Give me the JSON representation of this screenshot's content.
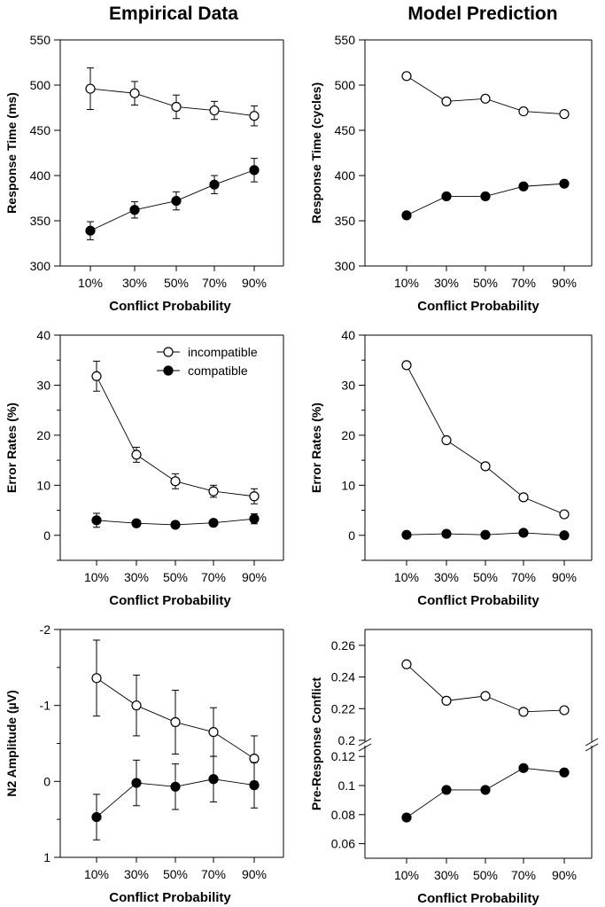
{
  "figure": {
    "col_titles": [
      "Empirical Data",
      "Model Prediction"
    ],
    "legend": {
      "incompatible": "incompatible",
      "compatible": "compatible"
    }
  },
  "chart_data": [
    {
      "id": "p1",
      "type": "line",
      "title": "Empirical Data",
      "xlabel": "Conflict Probability",
      "ylabel": "Response Time (ms)",
      "categories": [
        "10%",
        "30%",
        "50%",
        "70%",
        "90%"
      ],
      "ylim": [
        300,
        550
      ],
      "yticks": [
        300,
        350,
        400,
        450,
        500,
        550
      ],
      "ytick_labels": [
        "300",
        "350",
        "400",
        "450",
        "500",
        "550"
      ],
      "series": [
        {
          "name": "incompatible",
          "marker": "open",
          "values": [
            496,
            491,
            476,
            472,
            466
          ],
          "errors": [
            23,
            13,
            13,
            10,
            11
          ]
        },
        {
          "name": "compatible",
          "marker": "filled",
          "values": [
            339,
            362,
            372,
            390,
            406
          ],
          "errors": [
            10,
            9,
            10,
            10,
            13
          ]
        }
      ]
    },
    {
      "id": "p2",
      "type": "line",
      "title": "Model Prediction",
      "xlabel": "Conflict Probability",
      "ylabel": "Response Time (cycles)",
      "categories": [
        "10%",
        "30%",
        "50%",
        "70%",
        "90%"
      ],
      "ylim": [
        300,
        550
      ],
      "yticks": [
        300,
        350,
        400,
        450,
        500,
        550
      ],
      "ytick_labels": [
        "300",
        "350",
        "400",
        "450",
        "500",
        "550"
      ],
      "series": [
        {
          "name": "incompatible",
          "marker": "open",
          "values": [
            510,
            482,
            485,
            471,
            468
          ]
        },
        {
          "name": "compatible",
          "marker": "filled",
          "values": [
            356,
            377,
            377,
            388,
            391
          ]
        }
      ]
    },
    {
      "id": "p3",
      "type": "line",
      "xlabel": "Conflict Probability",
      "ylabel": "Error Rates (%)",
      "categories": [
        "10%",
        "30%",
        "50%",
        "70%",
        "90%"
      ],
      "ylim": [
        -5,
        40
      ],
      "yticks": [
        0,
        10,
        20,
        30,
        40
      ],
      "ytick_labels": [
        "0",
        "10",
        "20",
        "30",
        "40"
      ],
      "minor_yticks": [
        -5,
        5,
        15,
        25,
        35
      ],
      "legend_position": "top-right",
      "series": [
        {
          "name": "incompatible",
          "marker": "open",
          "values": [
            31.8,
            16.1,
            10.8,
            8.8,
            7.8
          ],
          "errors": [
            3,
            1.5,
            1.5,
            1.2,
            1.5
          ]
        },
        {
          "name": "compatible",
          "marker": "filled",
          "values": [
            3.0,
            2.4,
            2.1,
            2.5,
            3.3
          ],
          "errors": [
            1.4,
            0.6,
            0.6,
            0.6,
            1.0
          ]
        }
      ]
    },
    {
      "id": "p4",
      "type": "line",
      "xlabel": "Conflict Probability",
      "ylabel": "Error Rates (%)",
      "categories": [
        "10%",
        "30%",
        "50%",
        "70%",
        "90%"
      ],
      "ylim": [
        -5,
        40
      ],
      "yticks": [
        0,
        10,
        20,
        30,
        40
      ],
      "ytick_labels": [
        "0",
        "10",
        "20",
        "30",
        "40"
      ],
      "minor_yticks": [
        -5,
        5,
        15,
        25,
        35
      ],
      "series": [
        {
          "name": "incompatible",
          "marker": "open",
          "values": [
            34.0,
            19.0,
            13.8,
            7.6,
            4.2
          ]
        },
        {
          "name": "compatible",
          "marker": "filled",
          "values": [
            0.1,
            0.3,
            0.1,
            0.5,
            0.0
          ]
        }
      ]
    },
    {
      "id": "p5",
      "type": "line",
      "xlabel": "Conflict Probability",
      "ylabel": "N2 Amplitude (µV)",
      "categories": [
        "10%",
        "30%",
        "50%",
        "70%",
        "90%"
      ],
      "ylim": [
        1,
        -2
      ],
      "y_inverted": true,
      "yticks": [
        -2,
        -1,
        0,
        1
      ],
      "ytick_labels": [
        "-2",
        "-1",
        "0",
        "1"
      ],
      "minor_yticks": [
        -1.5,
        -0.5,
        0.5
      ],
      "series": [
        {
          "name": "incompatible",
          "marker": "open",
          "values": [
            -1.36,
            -1.0,
            -0.78,
            -0.65,
            -0.3
          ],
          "errors": [
            0.5,
            0.4,
            0.42,
            0.32,
            0.3
          ]
        },
        {
          "name": "compatible",
          "marker": "filled",
          "values": [
            0.47,
            0.02,
            0.07,
            -0.03,
            0.05
          ],
          "errors": [
            0.3,
            0.3,
            0.3,
            0.3,
            0.3
          ]
        }
      ]
    },
    {
      "id": "p6",
      "type": "line",
      "xlabel": "Conflict Probability",
      "ylabel": "Pre-Response Conflict",
      "categories": [
        "10%",
        "30%",
        "50%",
        "70%",
        "90%"
      ],
      "broken_axis": true,
      "upper_ylim": [
        0.2,
        0.27
      ],
      "upper_yticks": [
        0.2,
        0.22,
        0.24,
        0.26
      ],
      "upper_ytick_labels": [
        "0.2",
        "0.22",
        "0.24",
        "0.26"
      ],
      "lower_ylim": [
        0.05,
        0.125
      ],
      "lower_yticks": [
        0.06,
        0.08,
        0.1,
        0.12
      ],
      "lower_ytick_labels": [
        "0.06",
        "0.08",
        "0.1",
        "0.12"
      ],
      "series": [
        {
          "name": "incompatible",
          "marker": "open",
          "values": [
            0.248,
            0.225,
            0.228,
            0.218,
            0.219
          ]
        },
        {
          "name": "compatible",
          "marker": "filled",
          "values": [
            0.078,
            0.097,
            0.097,
            0.112,
            0.109
          ]
        }
      ]
    }
  ]
}
